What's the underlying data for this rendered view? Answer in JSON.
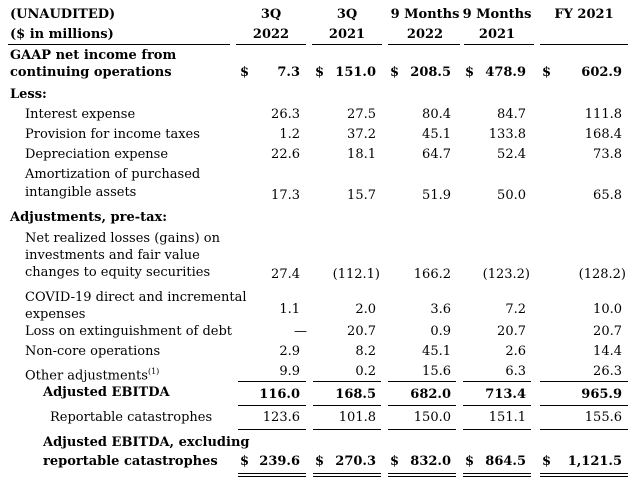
{
  "header": {
    "label1": "(UNAUDITED)",
    "label2": "($ in millions)",
    "columns": [
      {
        "line1": "3Q",
        "line2": "2022"
      },
      {
        "line1": "3Q",
        "line2": "2021"
      },
      {
        "line1": "9 Months",
        "line2": "2022"
      },
      {
        "line1": "9 Months",
        "line2": "2021"
      },
      {
        "line1": "FY 2021",
        "line2": ""
      }
    ]
  },
  "rows": {
    "gaap": {
      "label1": "GAAP net income from",
      "label2": "continuing operations",
      "cur": "$",
      "v": [
        "7.3",
        "151.0",
        "208.5",
        "478.9",
        "602.9"
      ]
    },
    "less": {
      "label": "Less:"
    },
    "interest": {
      "label": "Interest expense",
      "v": [
        "26.3",
        "27.5",
        "80.4",
        "84.7",
        "111.8"
      ]
    },
    "tax": {
      "label": "Provision for income taxes",
      "v": [
        "1.2",
        "37.2",
        "45.1",
        "133.8",
        "168.4"
      ]
    },
    "dep": {
      "label": "Depreciation expense",
      "v": [
        "22.6",
        "18.1",
        "64.7",
        "52.4",
        "73.8"
      ]
    },
    "amort": {
      "label1": "Amortization of purchased",
      "label2": "intangible assets",
      "v": [
        "17.3",
        "15.7",
        "51.9",
        "50.0",
        "65.8"
      ]
    },
    "adj": {
      "label": "Adjustments, pre-tax:"
    },
    "netreal": {
      "label1": "Net realized losses (gains) on",
      "label2": "investments and fair value",
      "label3": "changes to equity securities",
      "v": [
        "27.4",
        "(112.1)",
        "166.2",
        "(123.2)",
        "(128.2)"
      ]
    },
    "covid": {
      "label1": "COVID-19 direct and incremental",
      "label2": "expenses",
      "v": [
        "1.1",
        "2.0",
        "3.6",
        "7.2",
        "10.0"
      ]
    },
    "loss": {
      "label": "Loss on extinguishment of debt",
      "v": [
        "—",
        "20.7",
        "0.9",
        "20.7",
        "20.7"
      ]
    },
    "noncore": {
      "label": "Non-core operations",
      "v": [
        "2.9",
        "8.2",
        "45.1",
        "2.6",
        "14.4"
      ]
    },
    "other": {
      "label": "Other adjustments",
      "sup": "(1)",
      "v": [
        "9.9",
        "0.2",
        "15.6",
        "6.3",
        "26.3"
      ]
    },
    "ebitda": {
      "label": "Adjusted EBITDA",
      "v": [
        "116.0",
        "168.5",
        "682.0",
        "713.4",
        "965.9"
      ]
    },
    "cat": {
      "label": "Reportable catastrophes",
      "v": [
        "123.6",
        "101.8",
        "150.0",
        "151.1",
        "155.6"
      ]
    },
    "ebitdaex": {
      "label1": "Adjusted EBITDA, excluding",
      "label2": "reportable catastrophes",
      "cur": "$",
      "v": [
        "239.6",
        "270.3",
        "832.0",
        "864.5",
        "1,121.5"
      ]
    }
  }
}
